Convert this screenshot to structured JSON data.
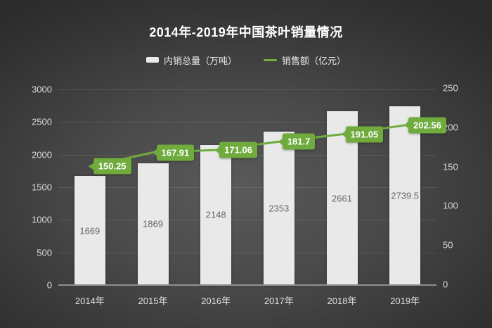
{
  "title": "2014年-2019年中国茶叶销量情况",
  "legend": {
    "items": [
      {
        "label": "内销总量（万吨）",
        "type": "bar",
        "color": "#e9e9e9"
      },
      {
        "label": "销售额（亿元）",
        "type": "line",
        "color": "#74ad3f"
      }
    ]
  },
  "chart_data": {
    "type": "bar+line",
    "title": "2014年-2019年中国茶叶销量情况",
    "categories": [
      "2014年",
      "2015年",
      "2016年",
      "2017年",
      "2018年",
      "2019年"
    ],
    "series": [
      {
        "name": "内销总量（万吨）",
        "type": "bar",
        "axis": "left",
        "values": [
          1669,
          1869,
          2148,
          2353,
          2661,
          2739.5
        ],
        "labels": [
          "1669",
          "1869",
          "2148",
          "2353",
          "2661",
          "2739.5"
        ],
        "color": "#e9e9e9"
      },
      {
        "name": "销售额（亿元）",
        "type": "line",
        "axis": "right",
        "values": [
          150.25,
          167.91,
          171.06,
          181.7,
          191.05,
          202.56
        ],
        "labels": [
          "150.25",
          "167.91",
          "171.06",
          "181.7",
          "191.05",
          "202.56"
        ],
        "color": "#6fab3d"
      }
    ],
    "left_axis": {
      "min": 0,
      "max": 3000,
      "step": 500,
      "ticks": [
        "0",
        "500",
        "1000",
        "1500",
        "2000",
        "2500",
        "3000"
      ]
    },
    "right_axis": {
      "min": 0,
      "max": 250,
      "step": 50,
      "ticks": [
        "0",
        "50",
        "100",
        "150",
        "200",
        "250"
      ]
    },
    "grid": true,
    "legend_position": "top",
    "background": "dark-radial-gray",
    "colors": {
      "accent_green": "#6fab3d",
      "bar_fill": "#e9e9e9",
      "axis_text": "#d9d9d9",
      "bar_value_text": "#676767"
    }
  }
}
